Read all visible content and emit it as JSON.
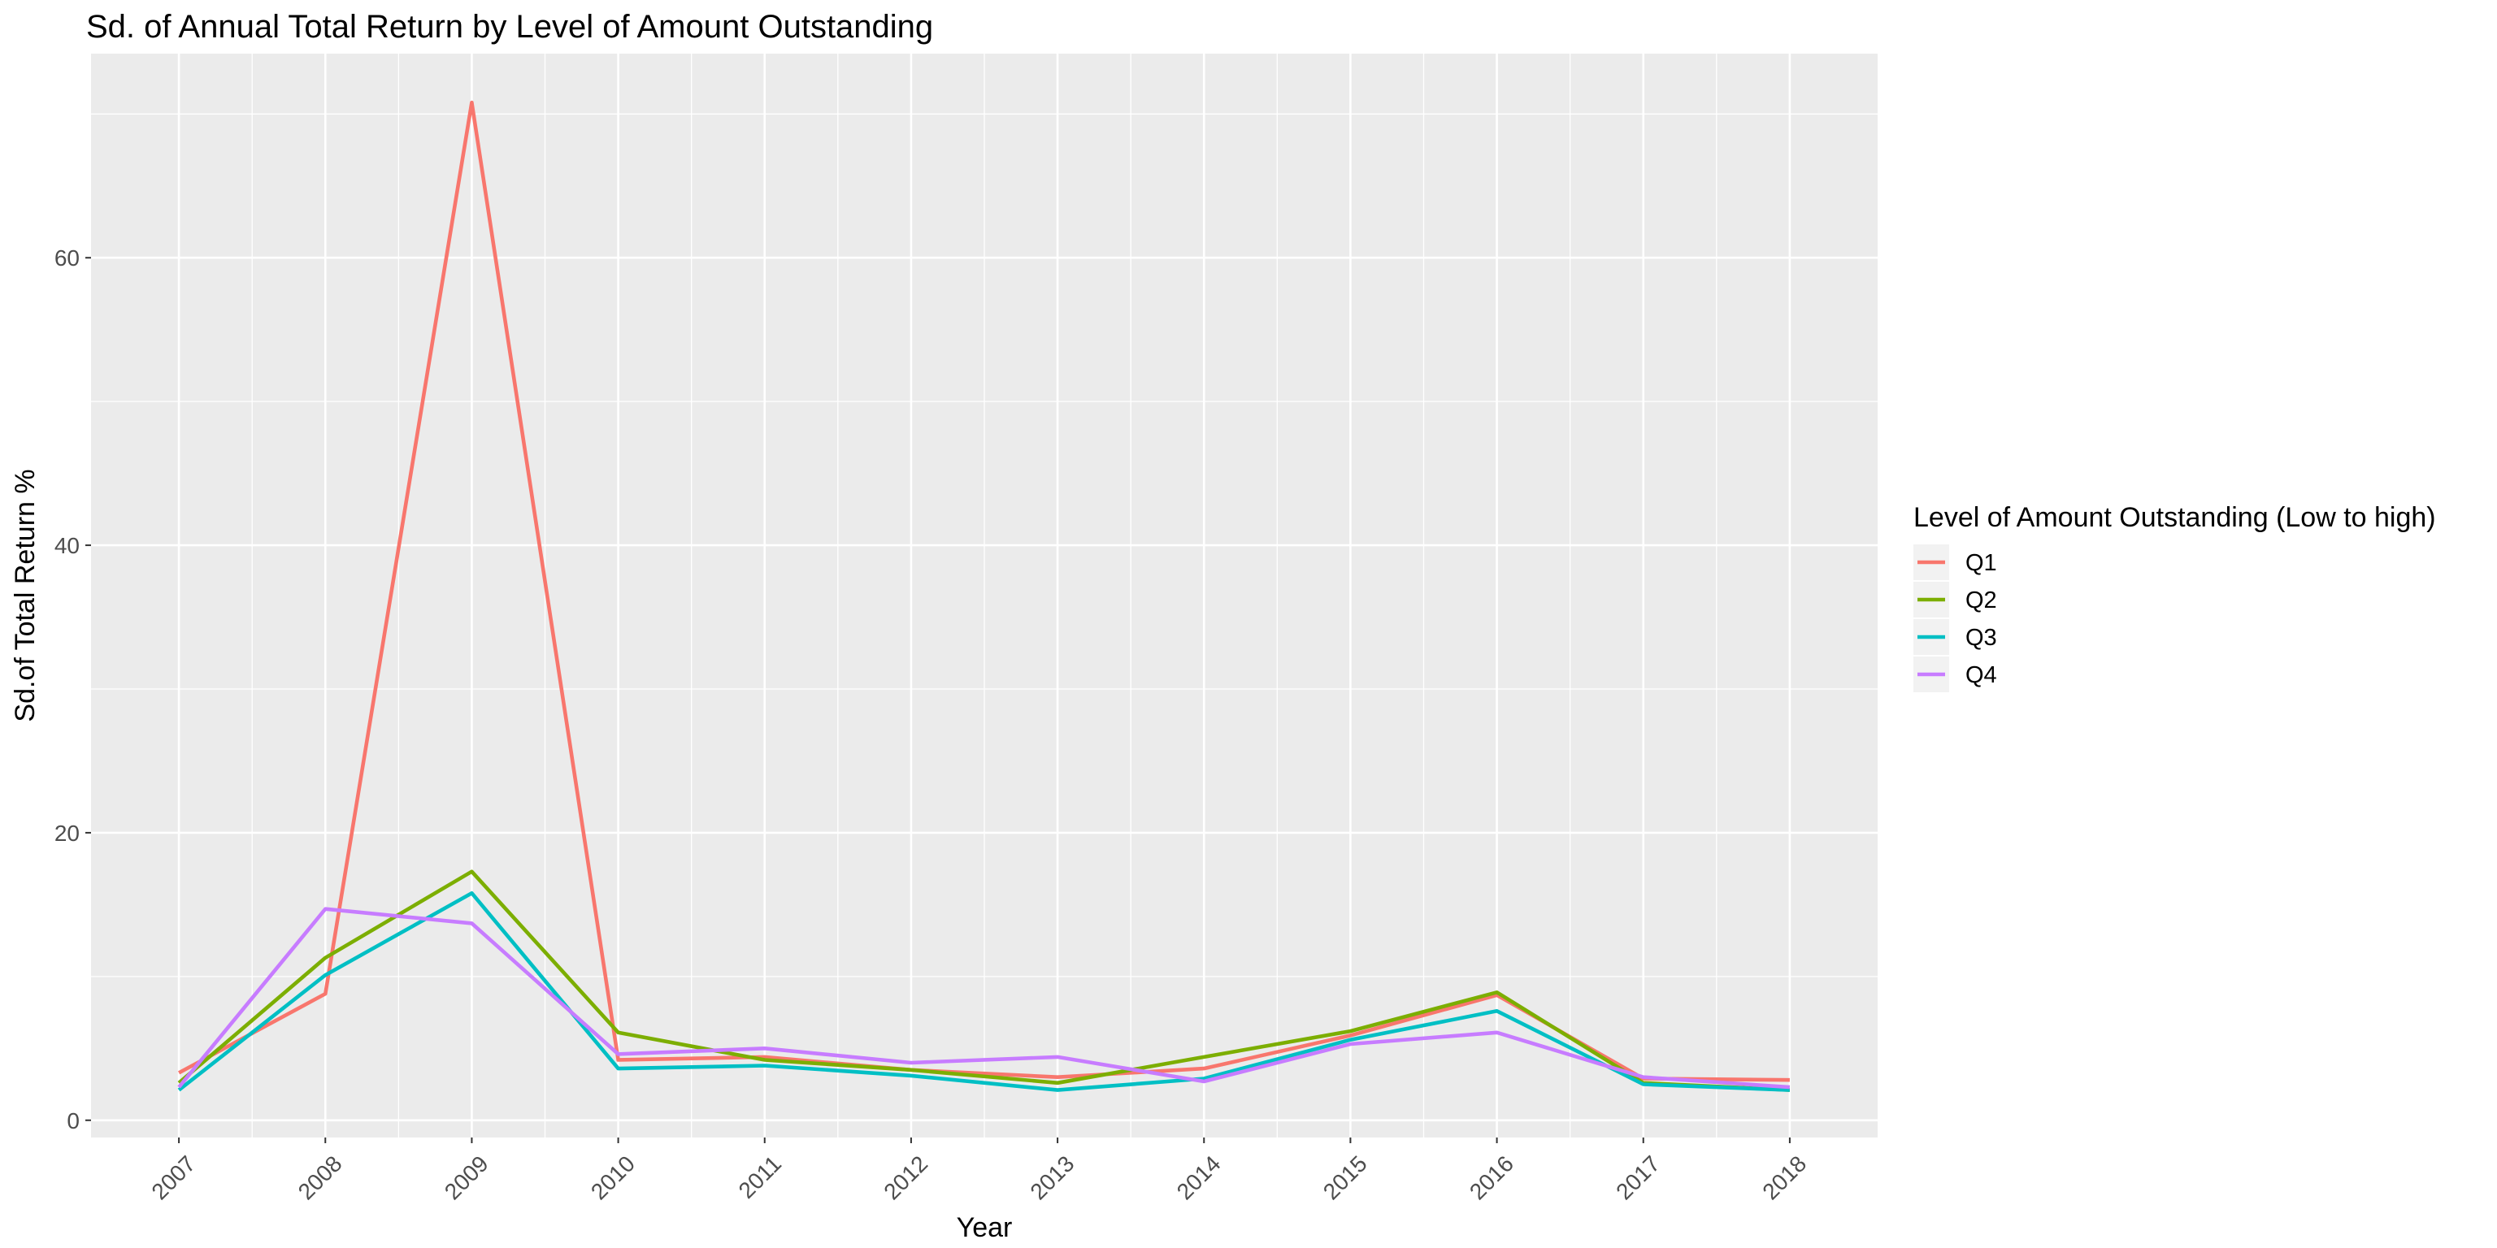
{
  "chart_data": {
    "type": "line",
    "title": "Sd. of Annual Total Return by Level of Amount Outstanding",
    "xlabel": "Year",
    "ylabel": "Sd.of Total Return %",
    "categories": [
      "2007",
      "2008",
      "2009",
      "2010",
      "2011",
      "2012",
      "2013",
      "2014",
      "2015",
      "2016",
      "2017",
      "2018"
    ],
    "yticks": [
      "0",
      "20",
      "40",
      "60"
    ],
    "ylim": [
      -1.2,
      74.2
    ],
    "grid": true,
    "legend": {
      "title": "Level of Amount Outstanding (Low to high)",
      "position": "right"
    },
    "series": [
      {
        "name": "Q1",
        "color": "#F8766D",
        "values": [
          3.3,
          8.8,
          70.8,
          4.2,
          4.4,
          3.5,
          3.0,
          3.6,
          5.9,
          8.7,
          2.9,
          2.8
        ]
      },
      {
        "name": "Q2",
        "color": "#7CAE00",
        "values": [
          2.6,
          11.3,
          17.3,
          6.1,
          4.2,
          3.5,
          2.6,
          4.4,
          6.2,
          8.9,
          2.6,
          2.1
        ]
      },
      {
        "name": "Q3",
        "color": "#00BFC4",
        "values": [
          2.1,
          10.1,
          15.8,
          3.6,
          3.8,
          3.1,
          2.1,
          2.9,
          5.6,
          7.6,
          2.5,
          2.1
        ]
      },
      {
        "name": "Q4",
        "color": "#C77CFF",
        "values": [
          2.3,
          14.7,
          13.7,
          4.6,
          5.0,
          4.0,
          4.4,
          2.7,
          5.3,
          6.1,
          3.0,
          2.3
        ]
      }
    ]
  }
}
